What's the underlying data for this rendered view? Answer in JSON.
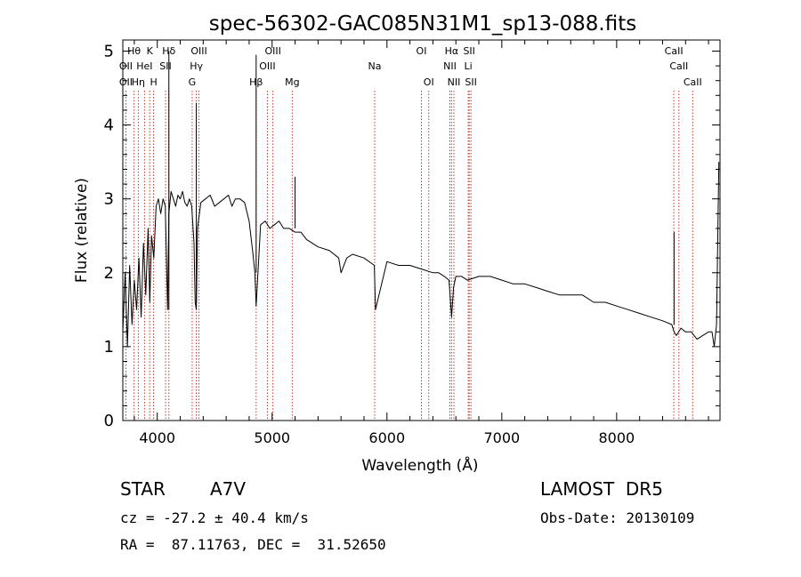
{
  "chart_data": {
    "type": "line",
    "title": "spec-56302-GAC085N31M1_sp13-088.fits",
    "xlabel": "Wavelength (Å)",
    "ylabel": "Flux (relative)",
    "xlim": [
      3700,
      8900
    ],
    "ylim": [
      0,
      5.15
    ],
    "xticks": [
      4000,
      5000,
      6000,
      7000,
      8000
    ],
    "yticks": [
      0,
      1,
      2,
      3,
      4,
      5
    ],
    "grid": false,
    "colors": {
      "spectrum": "#000000",
      "lines": "#c0392b"
    },
    "series": [
      {
        "x": [
          3700,
          3720,
          3740,
          3760,
          3780,
          3800,
          3820,
          3840,
          3860,
          3880,
          3900,
          3920,
          3935,
          3950,
          3970,
          3990,
          4010,
          4030,
          4050,
          4070,
          4090,
          4101,
          4120,
          4140,
          4160,
          4180,
          4200,
          4220,
          4240,
          4260,
          4280,
          4300,
          4320,
          4330,
          4340,
          4350,
          4380,
          4420,
          4460,
          4500,
          4540,
          4580,
          4620,
          4650,
          4680,
          4720,
          4760,
          4800,
          4830,
          4850,
          4861,
          4880,
          4900,
          4940,
          4980,
          5020,
          5060,
          5100,
          5150,
          5200,
          5250,
          5300,
          5400,
          5500,
          5580,
          5600,
          5650,
          5700,
          5800,
          5890,
          5900,
          6000,
          6100,
          6200,
          6300,
          6400,
          6450,
          6500,
          6540,
          6563,
          6580,
          6600,
          6650,
          6700,
          6800,
          6900,
          7000,
          7100,
          7200,
          7300,
          7400,
          7500,
          7600,
          7700,
          7800,
          7900,
          8000,
          8100,
          8200,
          8300,
          8400,
          8480,
          8500,
          8520,
          8560,
          8600,
          8650,
          8700,
          8750,
          8800,
          8830,
          8850,
          8870,
          8890
        ],
        "y": [
          1.2,
          2.0,
          1.0,
          2.1,
          1.3,
          1.9,
          1.5,
          2.2,
          1.4,
          2.4,
          1.7,
          2.6,
          1.6,
          2.5,
          2.2,
          2.9,
          3.0,
          2.8,
          3.0,
          2.9,
          1.5,
          2.8,
          3.1,
          3.0,
          2.9,
          3.05,
          3.0,
          3.1,
          2.95,
          2.9,
          3.0,
          2.9,
          2.4,
          1.6,
          1.5,
          2.6,
          2.95,
          3.0,
          3.05,
          2.9,
          2.95,
          3.0,
          3.05,
          2.9,
          3.0,
          3.0,
          2.95,
          2.7,
          2.3,
          2.0,
          1.55,
          2.1,
          2.65,
          2.7,
          2.6,
          2.65,
          2.7,
          2.6,
          2.6,
          2.55,
          2.55,
          2.45,
          2.35,
          2.3,
          2.2,
          2.0,
          2.2,
          2.25,
          2.2,
          2.1,
          1.5,
          2.15,
          2.1,
          2.1,
          2.05,
          2.0,
          2.0,
          1.95,
          1.9,
          1.4,
          1.8,
          1.95,
          1.95,
          1.9,
          1.95,
          1.95,
          1.9,
          1.85,
          1.85,
          1.8,
          1.75,
          1.7,
          1.7,
          1.7,
          1.6,
          1.6,
          1.55,
          1.5,
          1.45,
          1.4,
          1.35,
          1.3,
          1.2,
          1.15,
          1.25,
          1.2,
          1.2,
          1.1,
          1.15,
          1.2,
          1.2,
          1.0,
          1.3,
          3.5
        ]
      }
    ],
    "peaks": [
      {
        "x": 4101,
        "y": 5.0
      },
      {
        "x": 4340,
        "y": 4.3
      },
      {
        "x": 4861,
        "y": 4.95
      },
      {
        "x": 5200,
        "y": 3.3
      },
      {
        "x": 8500,
        "y": 2.55
      }
    ],
    "spectral_lines": [
      {
        "label": "Hθ",
        "x": 3798,
        "row": 0
      },
      {
        "label": "OII",
        "x": 3727,
        "row": 1
      },
      {
        "label": "OII",
        "x": 3727,
        "row": 2
      },
      {
        "label": "HeI",
        "x": 3889,
        "row": 1
      },
      {
        "label": "Hη",
        "x": 3835,
        "row": 2
      },
      {
        "label": "K",
        "x": 3934,
        "row": 0
      },
      {
        "label": "H",
        "x": 3968,
        "row": 2
      },
      {
        "label": "Hδ",
        "x": 4101,
        "row": 0
      },
      {
        "label": "SII",
        "x": 4072,
        "row": 1
      },
      {
        "label": "OIII",
        "x": 4363,
        "row": 0
      },
      {
        "label": "Hγ",
        "x": 4340,
        "row": 1
      },
      {
        "label": "G",
        "x": 4304,
        "row": 2
      },
      {
        "label": "Hβ",
        "x": 4861,
        "row": 2
      },
      {
        "label": "OIII",
        "x": 5007,
        "row": 0
      },
      {
        "label": "OIII",
        "x": 4959,
        "row": 1
      },
      {
        "label": "Mg",
        "x": 5175,
        "row": 2
      },
      {
        "label": "Na",
        "x": 5893,
        "row": 1
      },
      {
        "label": "OI",
        "x": 6300,
        "row": 0
      },
      {
        "label": "OI",
        "x": 6364,
        "row": 2
      },
      {
        "label": "Hα",
        "x": 6563,
        "row": 0
      },
      {
        "label": "NII",
        "x": 6548,
        "row": 1
      },
      {
        "label": "NII",
        "x": 6583,
        "row": 2
      },
      {
        "label": "SII",
        "x": 6716,
        "row": 0
      },
      {
        "label": "Li",
        "x": 6708,
        "row": 1
      },
      {
        "label": "SII",
        "x": 6731,
        "row": 2
      },
      {
        "label": "CaII",
        "x": 8498,
        "row": 0
      },
      {
        "label": "CaII",
        "x": 8542,
        "row": 1
      },
      {
        "label": "CaII",
        "x": 8662,
        "row": 2
      }
    ]
  },
  "info": {
    "object_class": "STAR",
    "subclass": "A7V",
    "survey": "LAMOST  DR5",
    "redshift": "cz = -27.2 ± 40.4 km/s",
    "obs_date": "Obs-Date: 20130109",
    "coords": "RA =  87.11763, DEC =  31.52650"
  }
}
